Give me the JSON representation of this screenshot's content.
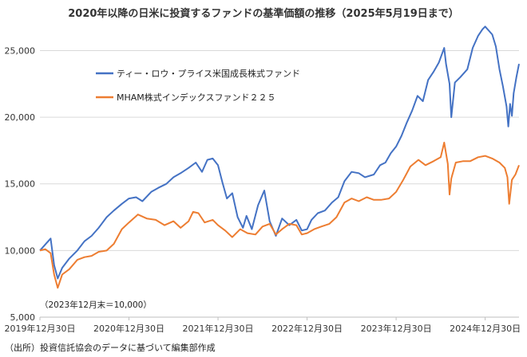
{
  "chart_data": {
    "type": "line",
    "title": "2020年以降の日米に投資するファンドの基準価額の推移（2025年5月19日まで）",
    "base_note": "（2023年12月末＝10,000）",
    "source_note": "（出所）投資信託協会のデータに基づいて編集部作成",
    "x_tick_labels": [
      "2019年12月30日",
      "2020年12月30日",
      "2021年12月30日",
      "2022年12月30日",
      "2023年12月30日",
      "2024年12月30日"
    ],
    "x_tick_times": [
      2020.0,
      2021.0,
      2022.0,
      2023.0,
      2024.0,
      2025.0
    ],
    "xlim": [
      2020.0,
      2025.38
    ],
    "ylim": [
      5000,
      27000
    ],
    "y_ticks": [
      5000,
      10000,
      15000,
      20000,
      25000
    ],
    "y_tick_labels": [
      "5,000",
      "10,000",
      "15,000",
      "20,000",
      "25,000"
    ],
    "legend_position": "top-left",
    "series": [
      {
        "name": "ティー・ロウ・プライス米国成長株式ファンド",
        "color": "#4472c4",
        "points": [
          [
            2020.0,
            10000
          ],
          [
            2020.06,
            10450
          ],
          [
            2020.12,
            10900
          ],
          [
            2020.16,
            8900
          ],
          [
            2020.2,
            7900
          ],
          [
            2020.25,
            8700
          ],
          [
            2020.33,
            9400
          ],
          [
            2020.42,
            10000
          ],
          [
            2020.5,
            10700
          ],
          [
            2020.58,
            11100
          ],
          [
            2020.66,
            11700
          ],
          [
            2020.75,
            12500
          ],
          [
            2020.83,
            13000
          ],
          [
            2020.92,
            13500
          ],
          [
            2021.0,
            13900
          ],
          [
            2021.08,
            14000
          ],
          [
            2021.15,
            13700
          ],
          [
            2021.25,
            14400
          ],
          [
            2021.33,
            14700
          ],
          [
            2021.42,
            15000
          ],
          [
            2021.5,
            15500
          ],
          [
            2021.58,
            15800
          ],
          [
            2021.67,
            16200
          ],
          [
            2021.75,
            16600
          ],
          [
            2021.82,
            15900
          ],
          [
            2021.88,
            16800
          ],
          [
            2021.94,
            16900
          ],
          [
            2022.0,
            16400
          ],
          [
            2022.05,
            15100
          ],
          [
            2022.1,
            13900
          ],
          [
            2022.16,
            14300
          ],
          [
            2022.22,
            12500
          ],
          [
            2022.28,
            11700
          ],
          [
            2022.32,
            12600
          ],
          [
            2022.38,
            11600
          ],
          [
            2022.45,
            13400
          ],
          [
            2022.52,
            14500
          ],
          [
            2022.58,
            12200
          ],
          [
            2022.65,
            11100
          ],
          [
            2022.72,
            12400
          ],
          [
            2022.8,
            11900
          ],
          [
            2022.88,
            12300
          ],
          [
            2022.94,
            11500
          ],
          [
            2023.0,
            11600
          ],
          [
            2023.05,
            12300
          ],
          [
            2023.12,
            12800
          ],
          [
            2023.2,
            13000
          ],
          [
            2023.28,
            13600
          ],
          [
            2023.35,
            14000
          ],
          [
            2023.42,
            15200
          ],
          [
            2023.5,
            15900
          ],
          [
            2023.58,
            15800
          ],
          [
            2023.65,
            15500
          ],
          [
            2023.75,
            15700
          ],
          [
            2023.82,
            16400
          ],
          [
            2023.88,
            16600
          ],
          [
            2023.94,
            17300
          ],
          [
            2024.0,
            17800
          ],
          [
            2024.06,
            18600
          ],
          [
            2024.12,
            19600
          ],
          [
            2024.18,
            20500
          ],
          [
            2024.24,
            21600
          ],
          [
            2024.3,
            21200
          ],
          [
            2024.36,
            22800
          ],
          [
            2024.42,
            23400
          ],
          [
            2024.48,
            24100
          ],
          [
            2024.54,
            25200
          ],
          [
            2024.56,
            24000
          ],
          [
            2024.6,
            22500
          ],
          [
            2024.62,
            20000
          ],
          [
            2024.66,
            22600
          ],
          [
            2024.72,
            23000
          ],
          [
            2024.8,
            23600
          ],
          [
            2024.86,
            25200
          ],
          [
            2024.92,
            26100
          ],
          [
            2024.97,
            26600
          ],
          [
            2025.0,
            26800
          ],
          [
            2025.04,
            26500
          ],
          [
            2025.08,
            26200
          ],
          [
            2025.12,
            25300
          ],
          [
            2025.16,
            23600
          ],
          [
            2025.2,
            22300
          ],
          [
            2025.24,
            20800
          ],
          [
            2025.26,
            19300
          ],
          [
            2025.28,
            21000
          ],
          [
            2025.3,
            20100
          ],
          [
            2025.32,
            21800
          ],
          [
            2025.35,
            23000
          ],
          [
            2025.38,
            24000
          ]
        ]
      },
      {
        "name": "MHAM株式インデックスファンド２２５",
        "color": "#ed7d31",
        "points": [
          [
            2020.0,
            10000
          ],
          [
            2020.06,
            10100
          ],
          [
            2020.12,
            9800
          ],
          [
            2020.16,
            8200
          ],
          [
            2020.2,
            7200
          ],
          [
            2020.25,
            8200
          ],
          [
            2020.33,
            8600
          ],
          [
            2020.42,
            9300
          ],
          [
            2020.5,
            9500
          ],
          [
            2020.58,
            9600
          ],
          [
            2020.66,
            9900
          ],
          [
            2020.75,
            10000
          ],
          [
            2020.83,
            10500
          ],
          [
            2020.92,
            11600
          ],
          [
            2021.0,
            12100
          ],
          [
            2021.1,
            12700
          ],
          [
            2021.2,
            12400
          ],
          [
            2021.3,
            12300
          ],
          [
            2021.4,
            11900
          ],
          [
            2021.5,
            12200
          ],
          [
            2021.58,
            11700
          ],
          [
            2021.67,
            12200
          ],
          [
            2021.72,
            12900
          ],
          [
            2021.78,
            12800
          ],
          [
            2021.85,
            12100
          ],
          [
            2021.94,
            12300
          ],
          [
            2022.0,
            11900
          ],
          [
            2022.08,
            11500
          ],
          [
            2022.16,
            11000
          ],
          [
            2022.25,
            11600
          ],
          [
            2022.33,
            11300
          ],
          [
            2022.42,
            11200
          ],
          [
            2022.5,
            11800
          ],
          [
            2022.58,
            12000
          ],
          [
            2022.65,
            11200
          ],
          [
            2022.72,
            11600
          ],
          [
            2022.8,
            12000
          ],
          [
            2022.88,
            11900
          ],
          [
            2022.94,
            11200
          ],
          [
            2023.0,
            11300
          ],
          [
            2023.08,
            11600
          ],
          [
            2023.16,
            11800
          ],
          [
            2023.25,
            12000
          ],
          [
            2023.33,
            12500
          ],
          [
            2023.42,
            13600
          ],
          [
            2023.5,
            13900
          ],
          [
            2023.58,
            13700
          ],
          [
            2023.67,
            14000
          ],
          [
            2023.75,
            13800
          ],
          [
            2023.83,
            13800
          ],
          [
            2023.92,
            13900
          ],
          [
            2024.0,
            14400
          ],
          [
            2024.08,
            15300
          ],
          [
            2024.16,
            16300
          ],
          [
            2024.25,
            16800
          ],
          [
            2024.33,
            16400
          ],
          [
            2024.42,
            16700
          ],
          [
            2024.5,
            17000
          ],
          [
            2024.54,
            18100
          ],
          [
            2024.58,
            16500
          ],
          [
            2024.6,
            14200
          ],
          [
            2024.62,
            15400
          ],
          [
            2024.67,
            16600
          ],
          [
            2024.75,
            16700
          ],
          [
            2024.83,
            16700
          ],
          [
            2024.92,
            17000
          ],
          [
            2025.0,
            17100
          ],
          [
            2025.08,
            16900
          ],
          [
            2025.16,
            16600
          ],
          [
            2025.22,
            16200
          ],
          [
            2025.25,
            15500
          ],
          [
            2025.27,
            13500
          ],
          [
            2025.3,
            15300
          ],
          [
            2025.34,
            15700
          ],
          [
            2025.38,
            16400
          ]
        ]
      }
    ]
  }
}
